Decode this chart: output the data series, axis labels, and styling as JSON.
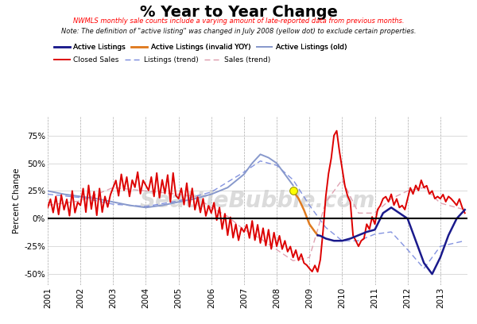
{
  "title": "% Year to Year Change",
  "subtitle1": "NWMLS monthly sale counts include a varying amount of late-reported data from previous months.",
  "subtitle2": "Note: The definition of \"active listing\" was changed in July 2008 (yellow dot) to exclude certain properties.",
  "ylabel": "Percent Change",
  "yticks": [
    -50,
    -25,
    0,
    25,
    50,
    75
  ],
  "yticklabels": [
    "-50%",
    "-25%",
    "0%",
    "25%",
    "50%",
    "75%"
  ],
  "xlim_start": 2001.0,
  "xlim_end": 2013.83,
  "ylim": [
    -60,
    92
  ],
  "background_color": "#ffffff",
  "watermark": "SeattleBubble.com",
  "colors": {
    "active_listings": "#1a1a8c",
    "active_listings_invalid": "#e07b20",
    "active_listings_old": "#8899cc",
    "closed_sales": "#dd0000",
    "listings_trend": "#7788dd",
    "sales_trend": "#dd99aa"
  },
  "legend_row1": [
    "Active Listings",
    "Active Listings (invalid YOY)",
    "Active Listings (old)"
  ],
  "legend_row2": [
    "Closed Sales",
    "Listings (trend)",
    "Sales (trend)"
  ]
}
